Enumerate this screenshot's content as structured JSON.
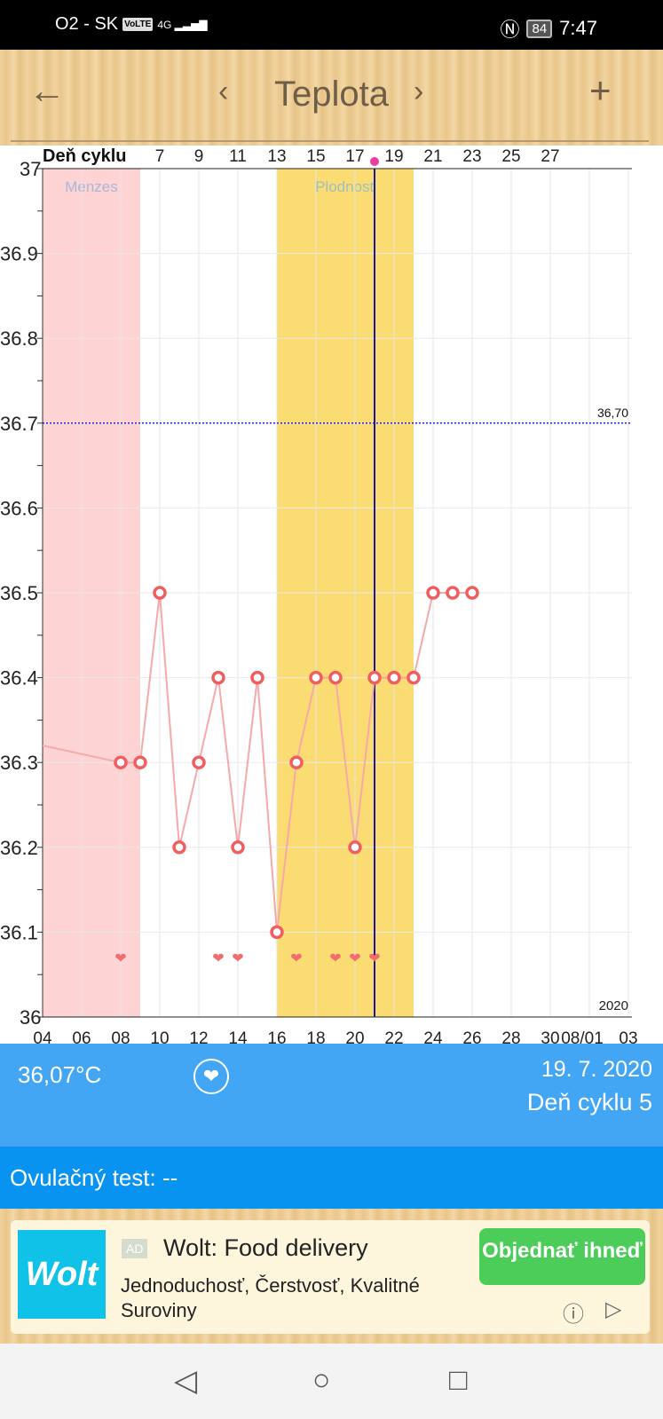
{
  "status_bar": {
    "carrier": "O2 - SK",
    "volte": "VoLTE",
    "network": "4G",
    "battery": "84",
    "time": "7:47"
  },
  "header": {
    "title": "Teplota",
    "back_icon": "arrow-left-icon",
    "prev_icon": "chevron-left-icon",
    "next_icon": "chevron-right-icon",
    "add_icon": "plus-icon"
  },
  "chart_data": {
    "type": "line",
    "xlabel": "",
    "ylabel": "",
    "x_tick_labels": [
      "04",
      "06",
      "08",
      "10",
      "12",
      "14",
      "16",
      "18",
      "20",
      "22",
      "24",
      "26",
      "28",
      "30",
      "08/01",
      "03"
    ],
    "x_range_days": [
      4,
      34
    ],
    "year_label": "2020",
    "top_axis_label": "Deň cyklu",
    "top_tick_labels": [
      "7",
      "9",
      "11",
      "13",
      "15",
      "17",
      "19",
      "21",
      "23",
      "25",
      "27"
    ],
    "y_ticks": [
      "36",
      "36.1",
      "36.2",
      "36.3",
      "36.4",
      "36.5",
      "36.6",
      "36.7",
      "36.8",
      "36.9",
      "37"
    ],
    "ylim": [
      36,
      37
    ],
    "grid": true,
    "x": [
      8,
      9,
      10,
      11,
      12,
      13,
      14,
      15,
      16,
      17,
      18,
      19,
      20,
      21,
      22,
      23,
      24,
      25,
      26
    ],
    "values": [
      36.3,
      36.3,
      36.5,
      36.2,
      36.3,
      36.4,
      36.2,
      36.4,
      36.1,
      36.3,
      36.4,
      36.4,
      36.2,
      36.4,
      36.4,
      36.4,
      36.5,
      36.5,
      36.5
    ],
    "line_start_value": 36.32,
    "heart_days": [
      8,
      13,
      14,
      17,
      19,
      20,
      21
    ],
    "threshold": {
      "value": 36.7,
      "label": "36,70",
      "color": "#2222cc"
    },
    "bands": [
      {
        "label": "Menzes",
        "from": 4,
        "to": 9,
        "color": "#fdd3d3"
      },
      {
        "label": "Plodnosť",
        "from": 16,
        "to": 23,
        "color": "#fbdc73"
      }
    ],
    "selected_day": 21,
    "colors": {
      "line": "#f5a9a9",
      "marker": "#ef5f60",
      "heart": "#f26d6d",
      "selected": "#1a1aa0"
    }
  },
  "info": {
    "temperature": "36,07°C",
    "heart_icon": "heart-icon",
    "date": "19. 7. 2020",
    "cycle_day": "Deň cyklu 5"
  },
  "ovulation": {
    "text": "Ovulačný test: --"
  },
  "ad": {
    "logo": "Wolt",
    "badge": "AD",
    "title": "Wolt: Food delivery",
    "description": "Jednoduchosť, Čerstvosť, Kvalitné Suroviny",
    "cta": "Objednať ihneď"
  },
  "colors": {
    "info_bg": "#42a6f5",
    "ovul_bg": "#0893f0",
    "cta": "#4ccd5a"
  }
}
